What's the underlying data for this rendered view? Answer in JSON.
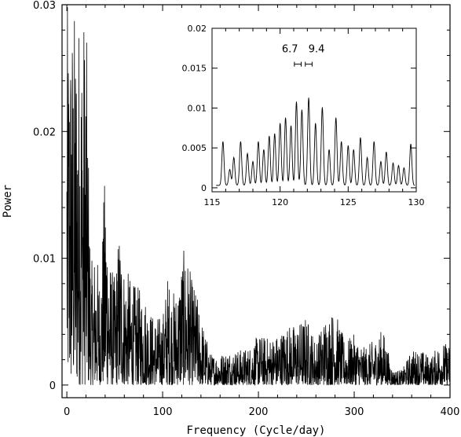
{
  "chart_data": [
    {
      "type": "line",
      "title": "",
      "xlabel": "Frequency (Cycle/day)",
      "ylabel": "Power",
      "xlim": [
        -5,
        400
      ],
      "ylim": [
        -0.001,
        0.03
      ],
      "x_ticks": [
        0,
        100,
        200,
        300,
        400
      ],
      "x_tick_labels": [
        "0",
        "100",
        "200",
        "300",
        "400"
      ],
      "y_ticks": [
        0,
        0.01,
        0.02,
        0.03
      ],
      "y_tick_labels": [
        "0",
        "0.01",
        "0.02",
        "0.03"
      ],
      "grid": false,
      "series": [
        {
          "description_free": true,
          "envelope_x": [
            0,
            5,
            10,
            15,
            20,
            25,
            30,
            35,
            40,
            45,
            50,
            55,
            60,
            70,
            80,
            90,
            100,
            105,
            110,
            115,
            120,
            125,
            130,
            135,
            140,
            150,
            160,
            170,
            180,
            190,
            200,
            210,
            220,
            230,
            240,
            250,
            260,
            270,
            280,
            290,
            300,
            310,
            320,
            330,
            340,
            350,
            360,
            370,
            380,
            390,
            400
          ],
          "envelope_y": [
            0.03,
            0.03,
            0.03,
            0.03,
            0.03,
            0.0095,
            0.011,
            0.0085,
            0.0175,
            0.01,
            0.0085,
            0.013,
            0.0095,
            0.008,
            0.0075,
            0.0055,
            0.0055,
            0.0088,
            0.0075,
            0.0075,
            0.0105,
            0.0108,
            0.0085,
            0.0075,
            0.0055,
            0.0025,
            0.0025,
            0.0028,
            0.0028,
            0.003,
            0.004,
            0.0038,
            0.004,
            0.0048,
            0.0048,
            0.0055,
            0.0035,
            0.0055,
            0.006,
            0.0035,
            0.004,
            0.003,
            0.0035,
            0.0045,
            0.0012,
            0.0012,
            0.0028,
            0.0028,
            0.0022,
            0.0035,
            0.0032
          ]
        }
      ]
    },
    {
      "type": "line",
      "title": "",
      "xlabel": "",
      "ylabel": "",
      "xlim": [
        115,
        130
      ],
      "ylim": [
        -0.0005,
        0.02
      ],
      "x_ticks": [
        115,
        120,
        125,
        130
      ],
      "x_tick_labels": [
        "115",
        "120",
        "125",
        "130"
      ],
      "y_ticks": [
        0,
        0.005,
        0.01,
        0.015,
        0.02
      ],
      "y_tick_labels": [
        "0",
        "0.005",
        "0.01",
        "0.015",
        "0.02"
      ],
      "peaks_x": [
        115.8,
        116.3,
        116.6,
        117.1,
        117.6,
        118.0,
        118.4,
        118.8,
        119.2,
        119.6,
        120.0,
        120.4,
        120.8,
        121.2,
        121.6,
        122.1,
        122.6,
        123.1,
        123.6,
        124.1,
        124.5,
        125.0,
        125.4,
        125.9,
        126.4,
        126.9,
        127.4,
        127.8,
        128.3,
        128.7,
        129.1,
        129.6
      ],
      "peaks_y": [
        0.0055,
        0.002,
        0.0035,
        0.0055,
        0.004,
        0.003,
        0.0055,
        0.0045,
        0.0062,
        0.0065,
        0.0078,
        0.0085,
        0.0075,
        0.0105,
        0.0095,
        0.011,
        0.0078,
        0.0098,
        0.0045,
        0.0085,
        0.0055,
        0.005,
        0.0045,
        0.006,
        0.0035,
        0.0055,
        0.003,
        0.0042,
        0.0028,
        0.0025,
        0.0022,
        0.0052
      ],
      "annotations": [
        {
          "text": "6.7",
          "x": 121.3,
          "y": 0.0155,
          "err_center": 121.3,
          "err_half": 0.25
        },
        {
          "text": "9.4",
          "x": 122.1,
          "y": 0.0155,
          "err_center": 122.1,
          "err_half": 0.25
        }
      ]
    }
  ]
}
